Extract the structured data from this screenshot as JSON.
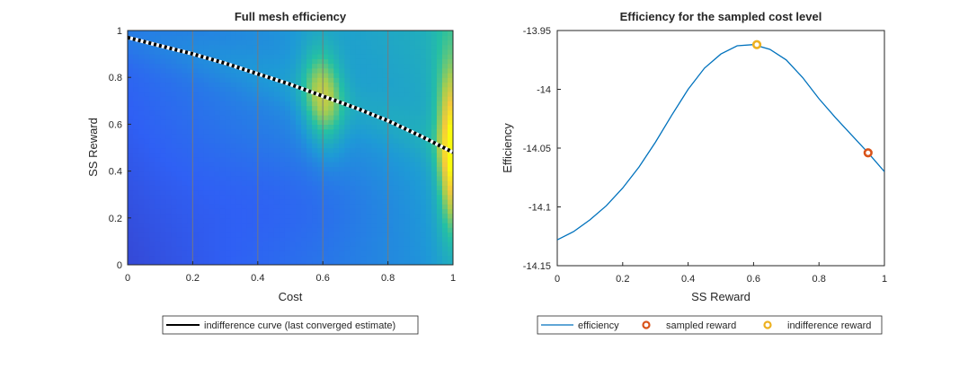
{
  "chart_data": [
    {
      "type": "heatmap",
      "title": "Full mesh efficiency",
      "xlabel": "Cost",
      "ylabel": "SS Reward",
      "xlim": [
        0,
        1
      ],
      "ylim": [
        0,
        1
      ],
      "x_ticks": [
        "0",
        "0.2",
        "0.4",
        "0.6",
        "0.8",
        "1"
      ],
      "y_ticks": [
        "0",
        "0.2",
        "0.4",
        "0.6",
        "0.8",
        "1"
      ],
      "colormap": [
        "#3e26a8",
        "#2f60f4",
        "#1e9ad6",
        "#24c0a4",
        "#a8cd4f",
        "#f5c93b",
        "#f9fb0e"
      ],
      "grid_lines_x": [
        0.2,
        0.4,
        0.6,
        0.8
      ],
      "curve": {
        "name": "indifference curve (last converged estimate)",
        "style": "dotted black/white",
        "x": [
          0,
          0.1,
          0.2,
          0.3,
          0.4,
          0.5,
          0.6,
          0.7,
          0.8,
          0.9,
          1.0
        ],
        "y": [
          0.97,
          0.935,
          0.9,
          0.86,
          0.815,
          0.77,
          0.72,
          0.67,
          0.615,
          0.55,
          0.48
        ]
      },
      "legend": {
        "entries": [
          "indifference curve (last converged estimate)"
        ],
        "location": "south-outside"
      }
    },
    {
      "type": "line",
      "title": "Efficiency for the sampled cost level",
      "xlabel": "SS Reward",
      "ylabel": "Efficiency",
      "xlim": [
        0,
        1
      ],
      "ylim": [
        -14.15,
        -13.95
      ],
      "x_ticks": [
        "0",
        "0.2",
        "0.4",
        "0.6",
        "0.8",
        "1"
      ],
      "y_ticks": [
        "-13.95",
        "-14",
        "-14.05",
        "-14.1",
        "-14.15"
      ],
      "series": [
        {
          "name": "efficiency",
          "color": "#0072bd",
          "x": [
            0,
            0.05,
            0.1,
            0.15,
            0.2,
            0.25,
            0.3,
            0.35,
            0.4,
            0.45,
            0.5,
            0.55,
            0.6,
            0.65,
            0.7,
            0.75,
            0.8,
            0.85,
            0.9,
            0.95,
            1.0
          ],
          "y": [
            -14.128,
            -14.121,
            -14.111,
            -14.099,
            -14.084,
            -14.066,
            -14.045,
            -14.022,
            -14.0,
            -13.982,
            -13.97,
            -13.963,
            -13.962,
            -13.966,
            -13.975,
            -13.99,
            -14.008,
            -14.024,
            -14.039,
            -14.054,
            -14.07
          ]
        }
      ],
      "markers": [
        {
          "name": "sampled reward",
          "color": "#d95319",
          "x": 0.95,
          "y": -14.054
        },
        {
          "name": "indifference reward",
          "color": "#edb120",
          "x": 0.61,
          "y": -13.962
        }
      ],
      "legend": {
        "entries": [
          "efficiency",
          "sampled reward",
          "indifference reward"
        ],
        "location": "south-outside"
      }
    }
  ]
}
